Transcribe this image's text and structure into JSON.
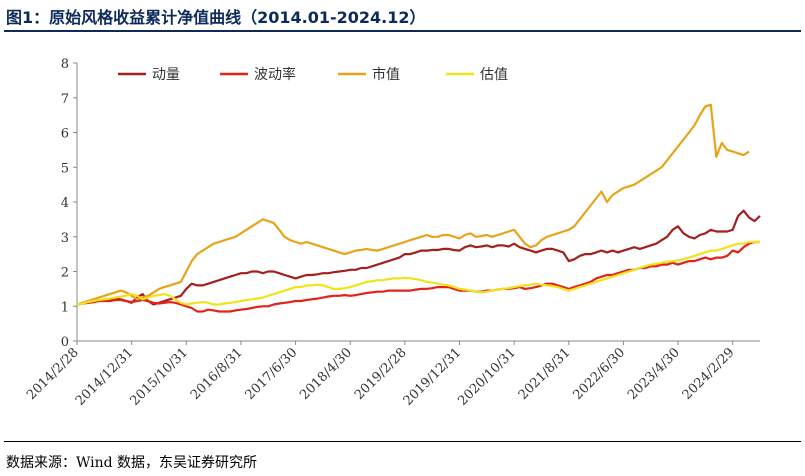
{
  "title": "图1：原始风格收益累计净值曲线（2014.01-2024.12）",
  "footer": "数据来源：Wind 数据，东吴证券研究所",
  "colors": {
    "title": "#0e2a5a",
    "axis": "#888888"
  },
  "chart_data": {
    "type": "line",
    "ylim": [
      0,
      8
    ],
    "yticks": [
      0,
      1,
      2,
      3,
      4,
      5,
      6,
      7,
      8
    ],
    "grid": false,
    "legend": "top",
    "xtick_labels": [
      "2014/2/28",
      "2014/12/31",
      "2015/10/31",
      "2016/8/31",
      "2017/6/30",
      "2018/4/30",
      "2019/2/28",
      "2019/12/31",
      "2020/10/31",
      "2021/8/31",
      "2022/6/30",
      "2023/4/30",
      "2024/2/29"
    ],
    "xtick_index": [
      0,
      10,
      20,
      30,
      40,
      50,
      60,
      70,
      80,
      90,
      100,
      110,
      120
    ],
    "series": [
      {
        "name": "动量",
        "color": "#a3201e",
        "values": [
          1.05,
          1.08,
          1.1,
          1.12,
          1.15,
          1.18,
          1.2,
          1.22,
          1.2,
          1.15,
          1.1,
          1.25,
          1.35,
          1.15,
          1.05,
          1.1,
          1.15,
          1.2,
          1.25,
          1.3,
          1.5,
          1.65,
          1.6,
          1.6,
          1.65,
          1.7,
          1.75,
          1.8,
          1.85,
          1.9,
          1.95,
          1.95,
          2.0,
          2.0,
          1.95,
          2.0,
          2.0,
          1.95,
          1.9,
          1.85,
          1.8,
          1.85,
          1.9,
          1.9,
          1.92,
          1.95,
          1.95,
          1.98,
          2.0,
          2.02,
          2.05,
          2.05,
          2.1,
          2.1,
          2.15,
          2.2,
          2.25,
          2.3,
          2.35,
          2.4,
          2.5,
          2.5,
          2.55,
          2.6,
          2.6,
          2.62,
          2.62,
          2.65,
          2.65,
          2.62,
          2.6,
          2.7,
          2.75,
          2.7,
          2.72,
          2.75,
          2.7,
          2.75,
          2.75,
          2.72,
          2.8,
          2.7,
          2.65,
          2.6,
          2.55,
          2.6,
          2.65,
          2.65,
          2.6,
          2.55,
          2.3,
          2.35,
          2.45,
          2.5,
          2.5,
          2.55,
          2.6,
          2.55,
          2.6,
          2.55,
          2.6,
          2.65,
          2.7,
          2.65,
          2.7,
          2.75,
          2.8,
          2.9,
          3.0,
          3.2,
          3.3,
          3.1,
          3.0,
          2.95,
          3.05,
          3.1,
          3.2,
          3.15,
          3.15,
          3.15,
          3.2,
          3.6,
          3.75,
          3.55,
          3.45,
          3.6
        ]
      },
      {
        "name": "波动率",
        "color": "#e2231a",
        "values": [
          1.05,
          1.08,
          1.1,
          1.12,
          1.15,
          1.15,
          1.15,
          1.18,
          1.18,
          1.15,
          1.12,
          1.15,
          1.18,
          1.15,
          1.1,
          1.08,
          1.1,
          1.12,
          1.1,
          1.05,
          1.0,
          0.95,
          0.85,
          0.85,
          0.9,
          0.88,
          0.85,
          0.85,
          0.85,
          0.88,
          0.9,
          0.92,
          0.95,
          0.98,
          1.0,
          1.0,
          1.05,
          1.08,
          1.1,
          1.12,
          1.15,
          1.15,
          1.18,
          1.2,
          1.22,
          1.25,
          1.28,
          1.3,
          1.3,
          1.32,
          1.3,
          1.32,
          1.35,
          1.38,
          1.4,
          1.42,
          1.42,
          1.45,
          1.45,
          1.45,
          1.45,
          1.45,
          1.48,
          1.5,
          1.5,
          1.52,
          1.55,
          1.55,
          1.55,
          1.5,
          1.45,
          1.45,
          1.45,
          1.42,
          1.42,
          1.45,
          1.45,
          1.48,
          1.5,
          1.5,
          1.52,
          1.55,
          1.5,
          1.52,
          1.55,
          1.6,
          1.65,
          1.65,
          1.6,
          1.55,
          1.5,
          1.55,
          1.6,
          1.65,
          1.7,
          1.8,
          1.85,
          1.9,
          1.9,
          1.95,
          2.0,
          2.05,
          2.05,
          2.1,
          2.1,
          2.15,
          2.15,
          2.2,
          2.2,
          2.25,
          2.2,
          2.25,
          2.3,
          2.3,
          2.35,
          2.4,
          2.35,
          2.4,
          2.4,
          2.45,
          2.6,
          2.55,
          2.7,
          2.8,
          2.85,
          2.85
        ]
      },
      {
        "name": "市值",
        "color": "#e8a317",
        "values": [
          1.05,
          1.1,
          1.15,
          1.2,
          1.25,
          1.3,
          1.35,
          1.4,
          1.45,
          1.4,
          1.3,
          1.2,
          1.25,
          1.3,
          1.4,
          1.5,
          1.55,
          1.6,
          1.65,
          1.7,
          2.0,
          2.3,
          2.5,
          2.6,
          2.7,
          2.8,
          2.85,
          2.9,
          2.95,
          3.0,
          3.1,
          3.2,
          3.3,
          3.4,
          3.5,
          3.45,
          3.4,
          3.2,
          3.0,
          2.9,
          2.85,
          2.8,
          2.85,
          2.8,
          2.75,
          2.7,
          2.65,
          2.6,
          2.55,
          2.5,
          2.55,
          2.6,
          2.62,
          2.65,
          2.62,
          2.6,
          2.65,
          2.7,
          2.75,
          2.8,
          2.85,
          2.9,
          2.95,
          3.0,
          3.05,
          3.0,
          3.0,
          3.05,
          3.05,
          3.0,
          2.95,
          3.05,
          3.1,
          3.0,
          3.02,
          3.05,
          3.0,
          3.05,
          3.1,
          3.15,
          3.2,
          3.0,
          2.8,
          2.7,
          2.75,
          2.9,
          3.0,
          3.05,
          3.1,
          3.15,
          3.2,
          3.3,
          3.5,
          3.7,
          3.9,
          4.1,
          4.3,
          4.0,
          4.2,
          4.3,
          4.4,
          4.45,
          4.5,
          4.6,
          4.7,
          4.8,
          4.9,
          5.0,
          5.2,
          5.4,
          5.6,
          5.8,
          6.0,
          6.2,
          6.5,
          6.75,
          6.8,
          5.3,
          5.7,
          5.5,
          5.45,
          5.4,
          5.35,
          5.45
        ]
      },
      {
        "name": "估值",
        "color": "#f0e31a",
        "values": [
          1.05,
          1.08,
          1.12,
          1.15,
          1.18,
          1.2,
          1.22,
          1.25,
          1.28,
          1.3,
          1.35,
          1.3,
          1.2,
          1.25,
          1.3,
          1.32,
          1.35,
          1.3,
          1.2,
          1.1,
          1.05,
          1.08,
          1.1,
          1.12,
          1.1,
          1.05,
          1.05,
          1.08,
          1.1,
          1.12,
          1.15,
          1.18,
          1.2,
          1.22,
          1.25,
          1.3,
          1.35,
          1.4,
          1.45,
          1.5,
          1.55,
          1.55,
          1.6,
          1.6,
          1.62,
          1.6,
          1.55,
          1.5,
          1.5,
          1.52,
          1.55,
          1.6,
          1.65,
          1.7,
          1.72,
          1.75,
          1.75,
          1.78,
          1.8,
          1.8,
          1.82,
          1.8,
          1.78,
          1.75,
          1.7,
          1.68,
          1.65,
          1.62,
          1.6,
          1.55,
          1.5,
          1.48,
          1.45,
          1.42,
          1.4,
          1.42,
          1.45,
          1.48,
          1.5,
          1.52,
          1.55,
          1.58,
          1.6,
          1.62,
          1.65,
          1.62,
          1.6,
          1.58,
          1.55,
          1.5,
          1.45,
          1.5,
          1.55,
          1.6,
          1.65,
          1.7,
          1.75,
          1.8,
          1.85,
          1.9,
          1.95,
          2.0,
          2.05,
          2.1,
          2.15,
          2.2,
          2.22,
          2.25,
          2.28,
          2.3,
          2.32,
          2.35,
          2.4,
          2.45,
          2.5,
          2.55,
          2.6,
          2.6,
          2.65,
          2.7,
          2.75,
          2.8,
          2.8,
          2.85,
          2.85,
          2.85
        ]
      }
    ]
  }
}
